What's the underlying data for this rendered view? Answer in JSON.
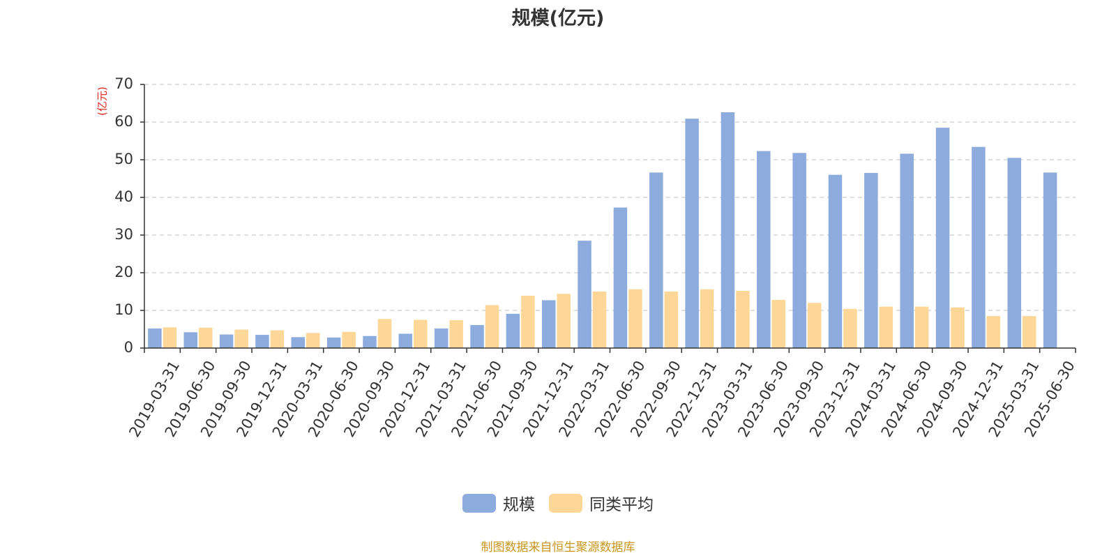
{
  "colors": {
    "series_1": "#8dabdc",
    "series_2": "#fdd797",
    "unit_label": "#e0201b",
    "source_note": "#c79620",
    "axis": "#333333",
    "grid": "#cccccc"
  },
  "chart_data": {
    "type": "bar",
    "title": "规模(亿元)",
    "ylabel": "(亿元)",
    "ylim": [
      0,
      70
    ],
    "yticks": [
      0,
      10,
      20,
      30,
      40,
      50,
      60,
      70
    ],
    "grid": true,
    "legend_position": "bottom-center",
    "categories": [
      "2019-03-31",
      "2019-06-30",
      "2019-09-30",
      "2019-12-31",
      "2020-03-31",
      "2020-06-30",
      "2020-09-30",
      "2020-12-31",
      "2021-03-31",
      "2021-06-30",
      "2021-09-30",
      "2021-12-31",
      "2022-03-31",
      "2022-06-30",
      "2022-09-30",
      "2022-12-31",
      "2023-03-31",
      "2023-06-30",
      "2023-09-30",
      "2023-12-31",
      "2024-03-31",
      "2024-06-30",
      "2024-09-30",
      "2024-12-31",
      "2025-03-31",
      "2025-06-30"
    ],
    "series": [
      {
        "name": "规模",
        "color": "#8dabdc",
        "values": [
          5.2,
          4.2,
          3.6,
          3.5,
          2.9,
          2.8,
          3.2,
          3.8,
          5.2,
          6.1,
          9.1,
          12.7,
          28.5,
          37.3,
          46.6,
          60.9,
          62.6,
          52.3,
          51.8,
          46.0,
          46.5,
          51.6,
          58.5,
          53.4,
          50.5,
          46.6
        ]
      },
      {
        "name": "同类平均",
        "color": "#fdd797",
        "values": [
          5.5,
          5.4,
          4.9,
          4.7,
          4.0,
          4.3,
          7.7,
          7.5,
          7.4,
          11.4,
          13.9,
          14.4,
          15.0,
          15.6,
          15.0,
          15.6,
          15.2,
          12.8,
          12.0,
          10.4,
          11.0,
          11.0,
          10.8,
          8.5,
          8.5,
          null
        ]
      }
    ]
  },
  "source_note": "制图数据来自恒生聚源数据库"
}
